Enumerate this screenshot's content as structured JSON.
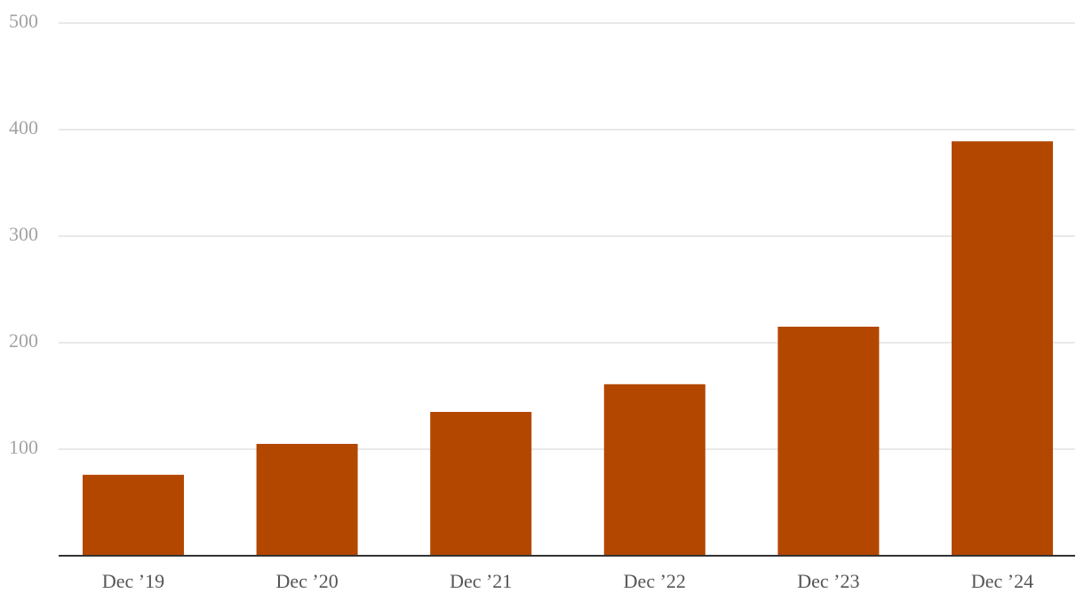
{
  "chart_data": {
    "type": "bar",
    "categories": [
      "Dec ’19",
      "Dec ’20",
      "Dec ’21",
      "Dec ’22",
      "Dec ’23",
      "Dec ’24"
    ],
    "values": [
      76,
      105,
      135,
      161,
      215,
      389
    ],
    "color": "#b34700",
    "ylim": [
      0,
      500
    ],
    "yticks": [
      100,
      200,
      300,
      400,
      500
    ],
    "grid": true
  }
}
